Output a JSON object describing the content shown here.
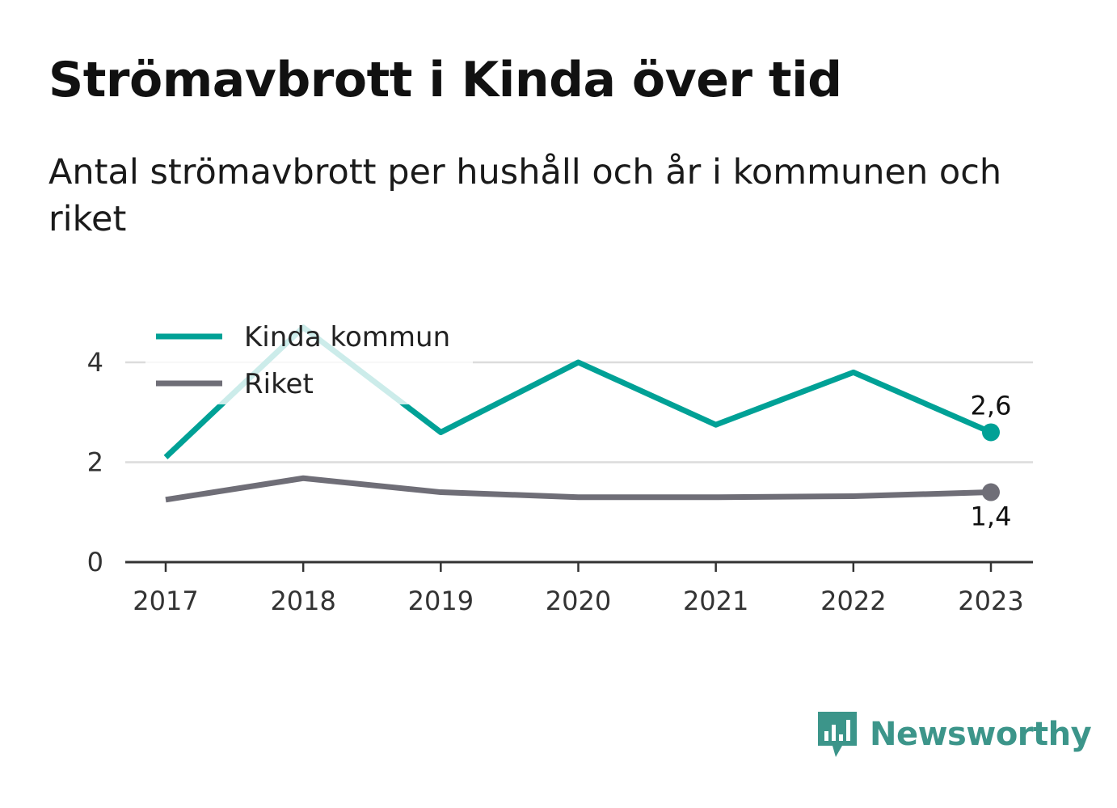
{
  "header": {
    "title": "Strömavbrott i Kinda över tid",
    "subtitle": "Antal strömavbrott per hushåll och år i kommunen och riket"
  },
  "branding": {
    "name": "Newsworthy",
    "icon": "newsworthy-logo-icon",
    "color": "#3c958a"
  },
  "chart_data": {
    "type": "line",
    "title": "Strömavbrott i Kinda över tid",
    "subtitle": "Antal strömavbrott per hushåll och år i kommunen och riket",
    "xlabel": "",
    "ylabel": "",
    "x": [
      "2017",
      "2018",
      "2019",
      "2020",
      "2021",
      "2022",
      "2023"
    ],
    "ylim": [
      0,
      4.8
    ],
    "yticks": [
      0,
      2,
      4
    ],
    "grid": true,
    "legend_position": "top-left",
    "series": [
      {
        "name": "Kinda kommun",
        "color": "#00a196",
        "values": [
          2.1,
          4.7,
          2.6,
          4.0,
          2.75,
          3.8,
          2.6
        ],
        "end_label": "2,6"
      },
      {
        "name": "Riket",
        "color": "#6f6e77",
        "values": [
          1.25,
          1.68,
          1.4,
          1.3,
          1.3,
          1.32,
          1.4
        ],
        "end_label": "1,4"
      }
    ]
  }
}
